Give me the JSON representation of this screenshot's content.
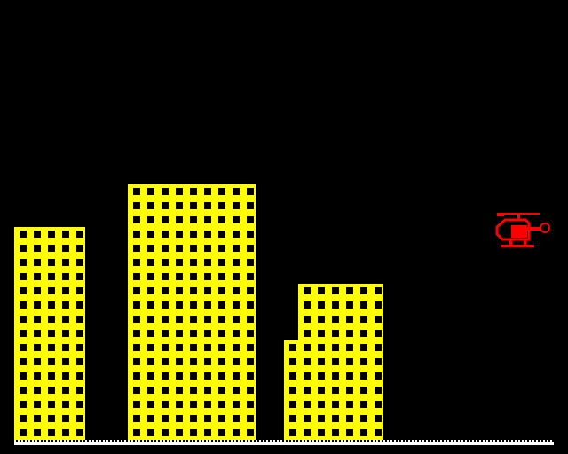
{
  "game": {
    "genre": "arcade-city-bomber",
    "sky_color": "#000000",
    "building_color": "#ffff00",
    "window_color": "#000000",
    "ground_color": "#ffffff",
    "player": {
      "vehicle": "helicopter",
      "color": "#ff0000",
      "icon": "helicopter-icon"
    },
    "buildings": [
      {
        "id": "left",
        "floors": 15,
        "columns": 5
      },
      {
        "id": "center",
        "floors": 18,
        "columns": 9
      },
      {
        "id": "right-low",
        "floors": 7,
        "columns": 1
      },
      {
        "id": "right-high",
        "floors": 11,
        "columns": 6
      }
    ]
  }
}
